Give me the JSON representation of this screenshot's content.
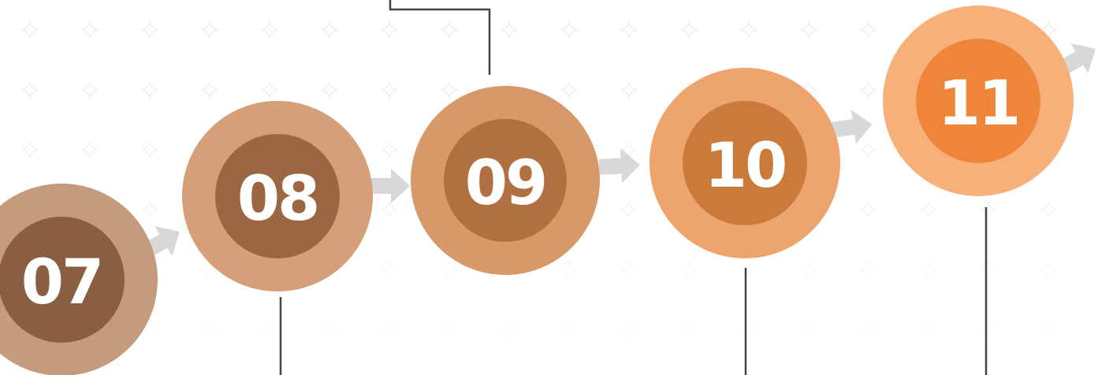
{
  "nodes": [
    {
      "label": "07"
    },
    {
      "label": "08"
    },
    {
      "label": "09"
    },
    {
      "label": "10"
    },
    {
      "label": "11"
    }
  ]
}
